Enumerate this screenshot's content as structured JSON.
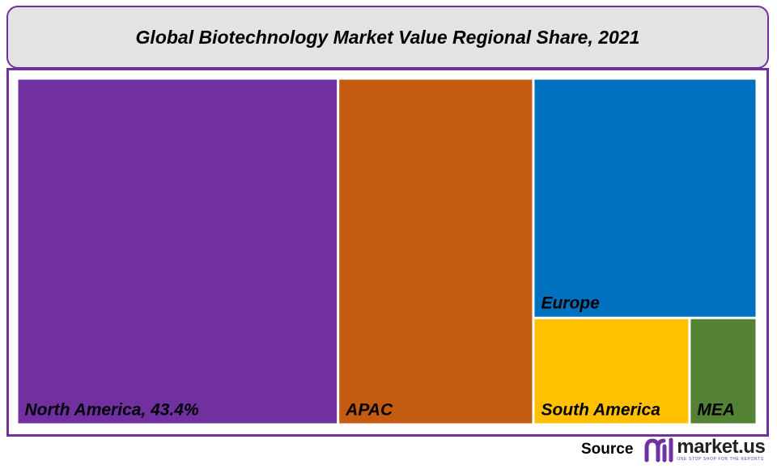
{
  "chart_data": {
    "type": "treemap",
    "title": "Global Biotechnology Market Value Regional Share, 2021",
    "series": [
      {
        "name": "North America",
        "label": "North America, 43.4%",
        "value": 43.4,
        "color": "#7030a0"
      },
      {
        "name": "APAC",
        "label": "APAC",
        "value": 26.4,
        "color": "#c55a11"
      },
      {
        "name": "Europe",
        "label": "Europe",
        "value": 20.9,
        "color": "#0070c0"
      },
      {
        "name": "South America",
        "label": "South America",
        "value": 6.5,
        "color": "#ffc000"
      },
      {
        "name": "MEA",
        "label": "MEA",
        "value": 2.8,
        "color": "#548235"
      }
    ]
  },
  "source": {
    "label": "Source",
    "brand": "market.us",
    "tagline": "ONE STOP SHOP FOR THE REPORTS"
  },
  "colors": {
    "frame": "#7030a0",
    "title_bg": "#e3e3e3"
  }
}
